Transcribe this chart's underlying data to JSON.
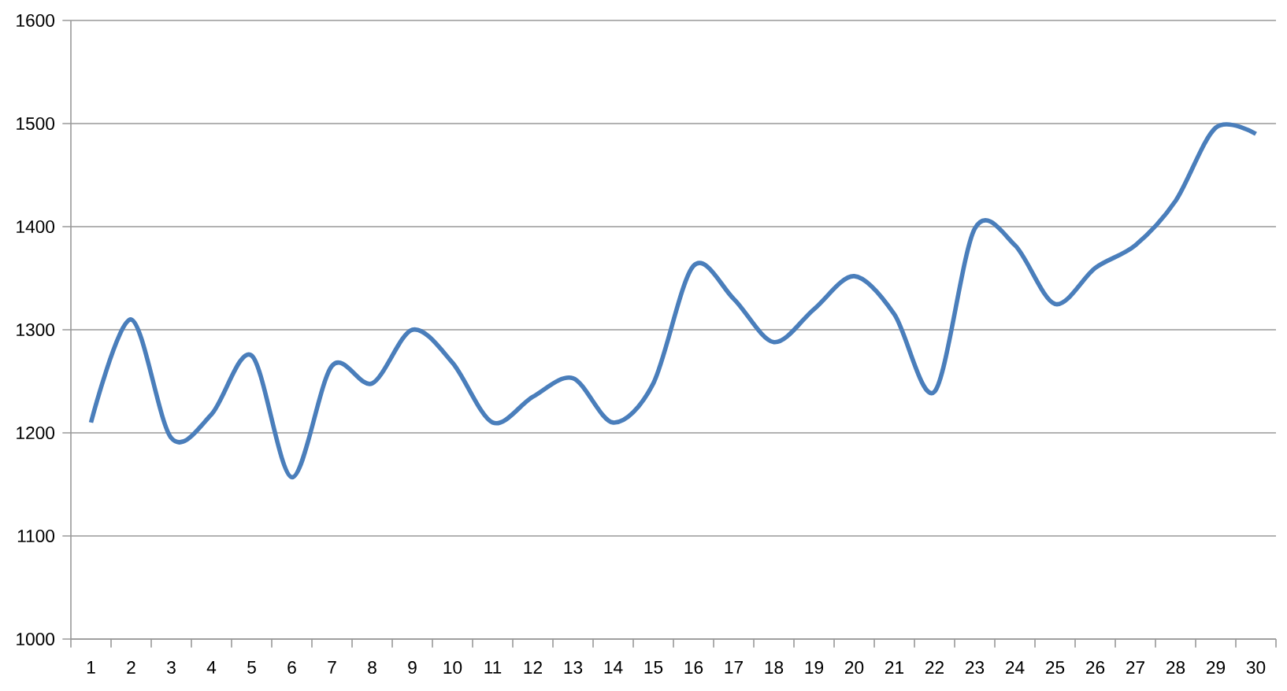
{
  "chart_data": {
    "type": "line",
    "categories": [
      "1",
      "2",
      "3",
      "4",
      "5",
      "6",
      "7",
      "8",
      "9",
      "10",
      "11",
      "12",
      "13",
      "14",
      "15",
      "16",
      "17",
      "18",
      "19",
      "20",
      "21",
      "22",
      "23",
      "24",
      "25",
      "26",
      "27",
      "28",
      "29",
      "30"
    ],
    "series": [
      {
        "color": "#4a7ebb",
        "values": [
          1210,
          1310,
          1195,
          1218,
          1275,
          1157,
          1265,
          1248,
          1300,
          1268,
          1210,
          1235,
          1253,
          1210,
          1248,
          1362,
          1330,
          1288,
          1320,
          1352,
          1315,
          1240,
          1398,
          1382,
          1325,
          1360,
          1382,
          1425,
          1496,
          1490
        ]
      }
    ],
    "ylim": [
      1000,
      1600
    ],
    "yticks": [
      1000,
      1100,
      1200,
      1300,
      1400,
      1500,
      1600
    ],
    "grid": "y",
    "marker": "none",
    "line_style": "solid"
  }
}
